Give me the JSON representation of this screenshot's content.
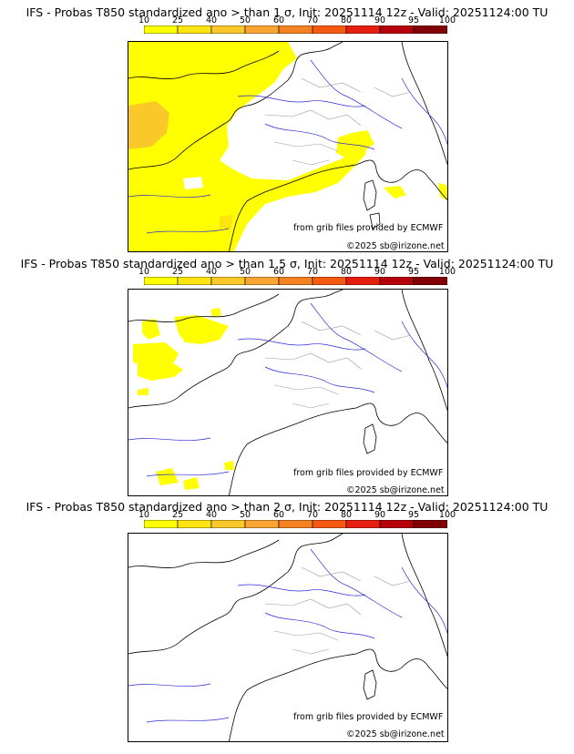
{
  "colorbar": {
    "ticks": [
      "10",
      "25",
      "40",
      "50",
      "60",
      "70",
      "80",
      "90",
      "95",
      "100"
    ],
    "colors": [
      "#ffff00",
      "#fde312",
      "#fbc82a",
      "#f8a534",
      "#f58220",
      "#f55a10",
      "#e61e10",
      "#b4000a",
      "#820005"
    ]
  },
  "credits": {
    "source": "from grib files provided by ECMWF",
    "copyright": "©2025 sb@irizone.net"
  },
  "panels": [
    {
      "title": "IFS - Probas T850  standardized ano > than 1 σ, Init: 20251114 12z - Valid: 20251124:00 TU",
      "sigma": 1,
      "coverage_level": "widespread"
    },
    {
      "title": "IFS - Probas T850  standardized ano > than 1.5 σ, Init: 20251114 12z - Valid: 20251124:00 TU",
      "sigma": 1.5,
      "coverage_level": "sparse"
    },
    {
      "title": "IFS - Probas T850  standardized ano > than 2 σ, Init: 20251114 12z - Valid: 20251124:00 TU",
      "sigma": 2,
      "coverage_level": "none"
    }
  ]
}
